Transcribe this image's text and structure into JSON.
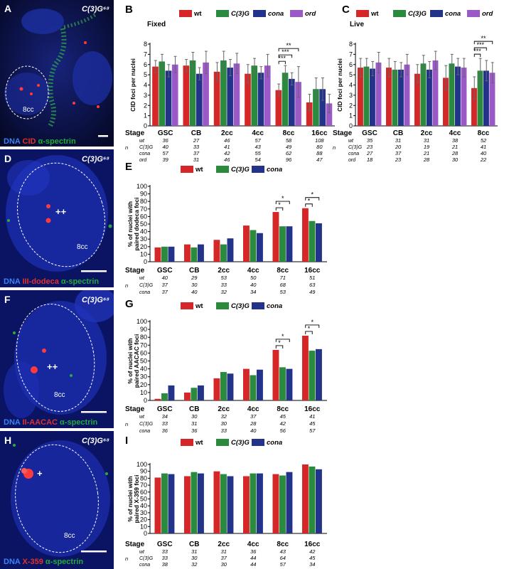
{
  "colors": {
    "wt": "#d62728",
    "c3g": "#2a8a3e",
    "cona": "#24338a",
    "ord": "#9b59c8"
  },
  "micrographs": [
    {
      "panel": "A",
      "genotype": "C(3)G⁶⁸",
      "cell_label": "8cc",
      "stain": [
        {
          "text": "DNA",
          "color": "#3b82f6"
        },
        {
          "text": " CID",
          "color": "#e0302b"
        },
        {
          "text": " α-spectrin",
          "color": "#22aa3a"
        }
      ]
    },
    {
      "panel": "D",
      "genotype": "C(3)G⁶⁸",
      "cell_label": "8cc",
      "mark": "++",
      "stain": [
        {
          "text": "DNA",
          "color": "#3b82f6"
        },
        {
          "text": " III-dodeca",
          "color": "#e0302b"
        },
        {
          "text": " α-spectrin",
          "color": "#22aa3a"
        }
      ]
    },
    {
      "panel": "F",
      "genotype": "C(3)G⁶⁸",
      "cell_label": "8cc",
      "mark": "++",
      "stain": [
        {
          "text": "DNA",
          "color": "#3b82f6"
        },
        {
          "text": " II-AACAC",
          "color": "#e0302b"
        },
        {
          "text": " α-spectrin",
          "color": "#22aa3a"
        }
      ]
    },
    {
      "panel": "H",
      "genotype": "C(3)G⁶⁸",
      "cell_label": "8cc",
      "mark": "+",
      "stain": [
        {
          "text": "DNA",
          "color": "#3b82f6"
        },
        {
          "text": " X-359",
          "color": "#e0302b"
        },
        {
          "text": " α-spectrin",
          "color": "#22aa3a"
        }
      ]
    }
  ],
  "chart_data": [
    {
      "panel": "B",
      "type": "bar",
      "title": "Fixed",
      "ylabel": "CID foci per nuclei",
      "ylim": [
        0,
        8
      ],
      "yticks": [
        0,
        1,
        2,
        3,
        4,
        5,
        6,
        7,
        8
      ],
      "stage_label": "Stage",
      "n_label": "n",
      "categories": [
        "GSC",
        "CB",
        "2cc",
        "4cc",
        "8cc",
        "16cc"
      ],
      "series": [
        {
          "name": "wt",
          "key": "wt",
          "values": [
            5.8,
            5.9,
            5.3,
            5.1,
            3.5,
            2.3
          ],
          "err": [
            0.6,
            0.6,
            0.9,
            0.9,
            0.6,
            0.8
          ],
          "n": [
            "36",
            "27",
            "46",
            "57",
            "58",
            "108"
          ]
        },
        {
          "name": "C(3)G",
          "key": "c3g",
          "values": [
            6.3,
            6.4,
            6.4,
            5.9,
            5.2,
            3.6
          ],
          "err": [
            0.7,
            0.8,
            0.9,
            0.7,
            0.7,
            1.1
          ],
          "n": [
            "40",
            "33",
            "41",
            "43",
            "49",
            "80"
          ]
        },
        {
          "name": "cona",
          "key": "cona",
          "values": [
            5.4,
            5.1,
            5.7,
            5.2,
            4.6,
            3.6
          ],
          "err": [
            0.6,
            0.6,
            0.8,
            0.6,
            0.6,
            1.1
          ],
          "n": [
            "57",
            "37",
            "42",
            "55",
            "62",
            "88"
          ]
        },
        {
          "name": "ord",
          "key": "ord",
          "values": [
            6.0,
            6.2,
            6.1,
            5.9,
            4.3,
            2.2
          ],
          "err": [
            0.8,
            1.1,
            1.0,
            1.1,
            1.5,
            0.9
          ],
          "n": [
            "39",
            "31",
            "46",
            "54",
            "96",
            "47"
          ]
        }
      ],
      "significance": [
        {
          "category": "8cc",
          "labels": [
            "***",
            "***",
            "**"
          ]
        }
      ]
    },
    {
      "panel": "C",
      "type": "bar",
      "title": "Live",
      "ylabel": "CID foci per nuclei",
      "ylim": [
        0,
        8
      ],
      "yticks": [
        0,
        1,
        2,
        3,
        4,
        5,
        6,
        7,
        8
      ],
      "stage_label": "Stage",
      "n_label": "n",
      "categories": [
        "GSC",
        "CB",
        "2cc",
        "4cc",
        "8cc"
      ],
      "series": [
        {
          "name": "wt",
          "key": "wt",
          "values": [
            5.7,
            5.7,
            5.1,
            4.7,
            3.7
          ],
          "err": [
            0.9,
            0.9,
            0.9,
            1.2,
            1.1
          ],
          "n": [
            "35",
            "31",
            "31",
            "38",
            "52"
          ]
        },
        {
          "name": "C(3)G",
          "key": "c3g",
          "values": [
            5.8,
            5.5,
            6.1,
            6.1,
            5.4
          ],
          "err": [
            0.8,
            0.8,
            0.8,
            0.9,
            1.2
          ],
          "n": [
            "23",
            "20",
            "19",
            "21",
            "41"
          ]
        },
        {
          "name": "cona",
          "key": "cona",
          "values": [
            5.6,
            5.5,
            5.5,
            5.8,
            5.4
          ],
          "err": [
            0.7,
            0.7,
            0.8,
            0.8,
            1.0
          ],
          "n": [
            "27",
            "37",
            "21",
            "28",
            "40"
          ]
        },
        {
          "name": "ord",
          "key": "ord",
          "values": [
            6.2,
            6.0,
            6.4,
            5.7,
            5.2
          ],
          "err": [
            1.0,
            1.0,
            0.9,
            0.9,
            1.0
          ],
          "n": [
            "18",
            "23",
            "28",
            "30",
            "22"
          ]
        }
      ],
      "significance": [
        {
          "category": "8cc",
          "labels": [
            "***",
            "***",
            "**"
          ]
        }
      ]
    },
    {
      "panel": "E",
      "type": "bar",
      "ylabel": "% of nuclei with paired dodeca foci",
      "ylim": [
        0,
        100
      ],
      "yticks": [
        0,
        10,
        20,
        30,
        40,
        50,
        60,
        70,
        80,
        90,
        100
      ],
      "stage_label": "Stage",
      "n_label": "n",
      "categories": [
        "GSC",
        "CB",
        "2cc",
        "4cc",
        "8cc",
        "16cc"
      ],
      "series": [
        {
          "name": "wt",
          "key": "wt",
          "values": [
            19,
            23,
            29,
            48,
            66,
            71
          ],
          "n": [
            "40",
            "29",
            "53",
            "50",
            "71",
            "51"
          ]
        },
        {
          "name": "C(3)G",
          "key": "c3g",
          "values": [
            20,
            19,
            23,
            42,
            47,
            54
          ],
          "n": [
            "37",
            "30",
            "33",
            "40",
            "68",
            "63"
          ]
        },
        {
          "name": "cona",
          "key": "cona",
          "values": [
            20,
            23,
            31,
            38,
            47,
            51
          ],
          "n": [
            "37",
            "40",
            "32",
            "34",
            "53",
            "49"
          ]
        }
      ],
      "significance": [
        {
          "category": "8cc",
          "labels": [
            "*",
            "*"
          ]
        },
        {
          "category": "16cc",
          "labels": [
            "*",
            "*"
          ]
        }
      ]
    },
    {
      "panel": "G",
      "type": "bar",
      "ylabel": "% of nuclei with paired AACAC foci",
      "ylim": [
        0,
        100
      ],
      "yticks": [
        0,
        10,
        20,
        30,
        40,
        50,
        60,
        70,
        80,
        90,
        100
      ],
      "stage_label": "Stage",
      "n_label": "n",
      "categories": [
        "GSC",
        "CB",
        "2cc",
        "4cc",
        "8cc",
        "16cc"
      ],
      "series": [
        {
          "name": "wt",
          "key": "wt",
          "values": [
            2,
            10,
            28,
            40,
            64,
            82
          ],
          "n": [
            "34",
            "30",
            "32",
            "37",
            "45",
            "41"
          ]
        },
        {
          "name": "C(3)G",
          "key": "c3g",
          "values": [
            9,
            16,
            36,
            32,
            42,
            63
          ],
          "n": [
            "33",
            "31",
            "30",
            "28",
            "42",
            "45"
          ]
        },
        {
          "name": "cona",
          "key": "cona",
          "values": [
            19,
            19,
            34,
            39,
            40,
            65
          ],
          "n": [
            "36",
            "36",
            "33",
            "40",
            "56",
            "57"
          ]
        }
      ],
      "significance": [
        {
          "category": "8cc",
          "labels": [
            "*",
            "*"
          ]
        },
        {
          "category": "16cc",
          "labels": [
            "*",
            "*"
          ]
        }
      ]
    },
    {
      "panel": "I",
      "type": "bar",
      "ylabel": "% of nuclei with paired X-359 foci",
      "ylim": [
        0,
        100
      ],
      "yticks": [
        0,
        10,
        20,
        30,
        40,
        50,
        60,
        70,
        80,
        90,
        100
      ],
      "stage_label": "Stage",
      "n_label": "n",
      "categories": [
        "GSC",
        "CB",
        "2cc",
        "4cc",
        "8cc",
        "16cc"
      ],
      "series": [
        {
          "name": "wt",
          "key": "wt",
          "values": [
            81,
            83,
            90,
            83,
            86,
            100
          ],
          "n": [
            "33",
            "31",
            "31",
            "36",
            "43",
            "42"
          ]
        },
        {
          "name": "C(3)G",
          "key": "c3g",
          "values": [
            87,
            89,
            86,
            87,
            84,
            97
          ],
          "n": [
            "33",
            "30",
            "37",
            "44",
            "64",
            "45"
          ]
        },
        {
          "name": "cona",
          "key": "cona",
          "values": [
            86,
            87,
            83,
            87,
            89,
            93
          ],
          "n": [
            "38",
            "32",
            "30",
            "44",
            "57",
            "34"
          ]
        }
      ],
      "significance": []
    }
  ]
}
